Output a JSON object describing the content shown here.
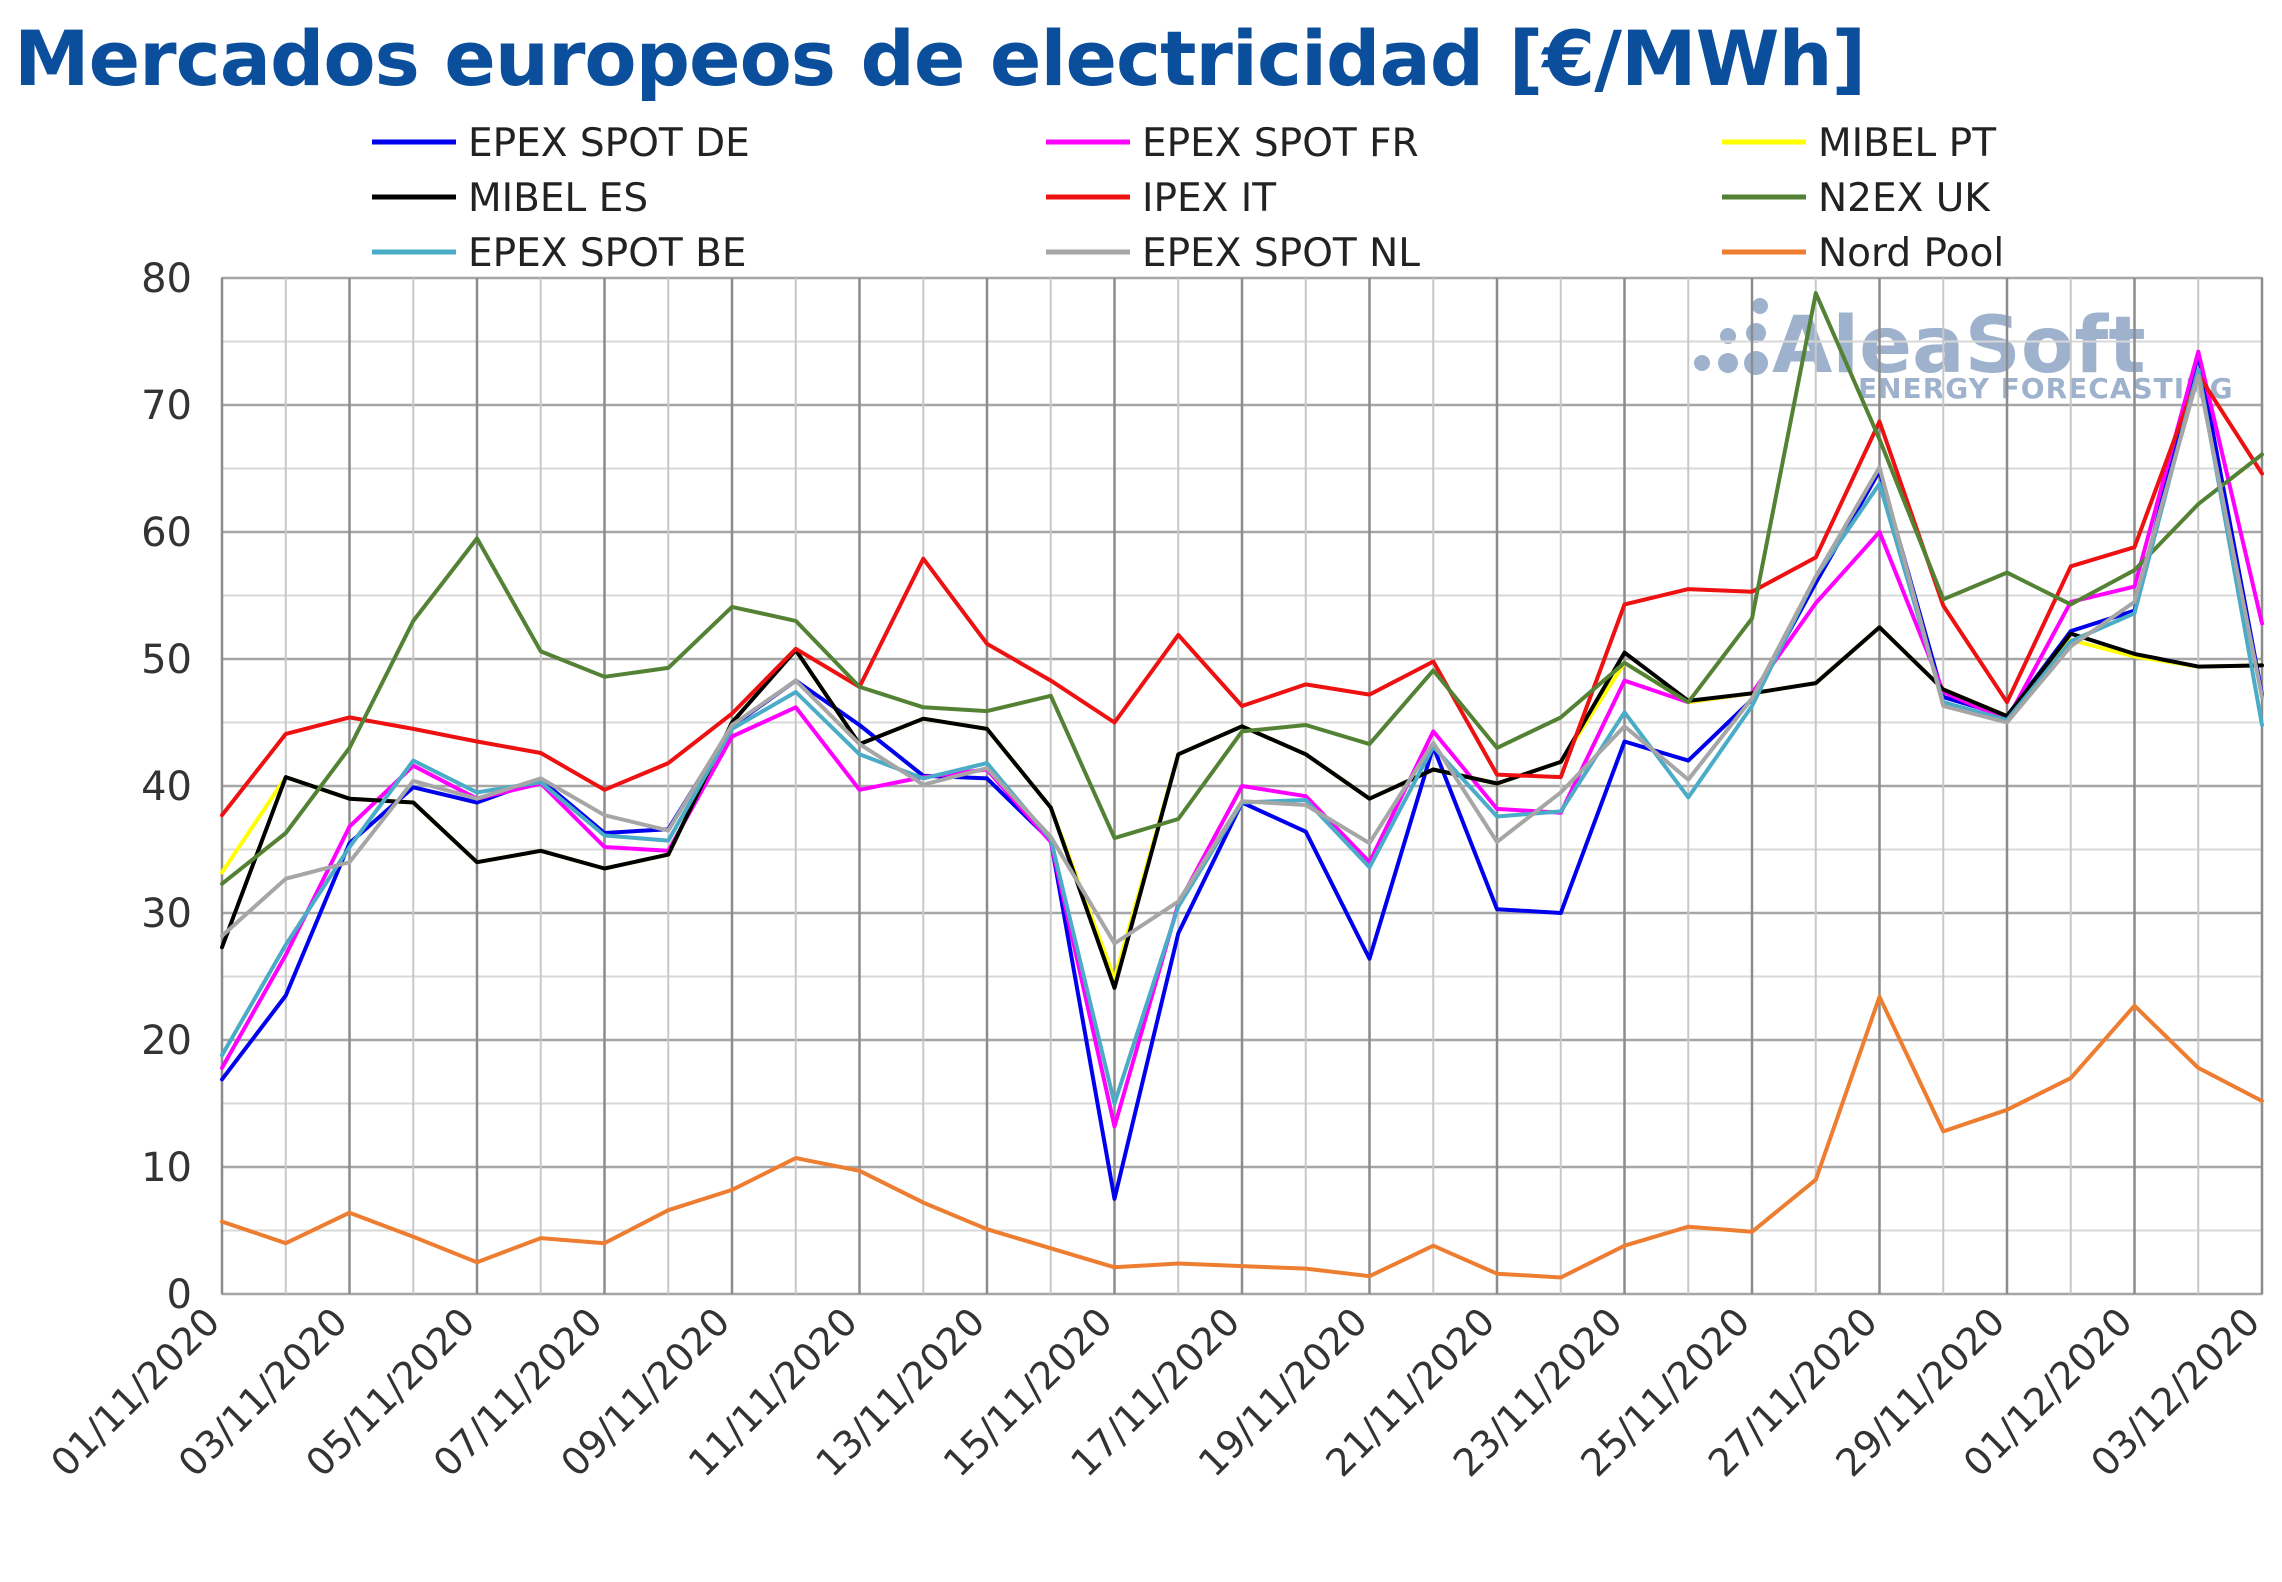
{
  "title": "Mercados europeos de electricidad [€/MWh]",
  "logo": {
    "name": "AleaSoft",
    "tagline": "ENERGY FORECASTING"
  },
  "chart_data": {
    "type": "line",
    "title": "Mercados europeos de electricidad [€/MWh]",
    "ylim": [
      0,
      80
    ],
    "ymajor": 10,
    "yminor": 5,
    "grid": true,
    "legend": "top",
    "x": [
      "01/11/2020",
      "02/11/2020",
      "03/11/2020",
      "04/11/2020",
      "05/11/2020",
      "06/11/2020",
      "07/11/2020",
      "08/11/2020",
      "09/11/2020",
      "10/11/2020",
      "11/11/2020",
      "12/11/2020",
      "13/11/2020",
      "14/11/2020",
      "15/11/2020",
      "16/11/2020",
      "17/11/2020",
      "18/11/2020",
      "19/11/2020",
      "20/11/2020",
      "21/11/2020",
      "22/11/2020",
      "23/11/2020",
      "24/11/2020",
      "25/11/2020",
      "26/11/2020",
      "27/11/2020",
      "28/11/2020",
      "29/11/2020",
      "30/11/2020",
      "01/12/2020",
      "02/12/2020",
      "03/12/2020"
    ],
    "xticklabels": [
      "01/11/2020",
      "03/11/2020",
      "05/11/2020",
      "07/11/2020",
      "09/11/2020",
      "11/11/2020",
      "13/11/2020",
      "15/11/2020",
      "17/11/2020",
      "19/11/2020",
      "21/11/2020",
      "23/11/2020",
      "25/11/2020",
      "27/11/2020",
      "29/11/2020",
      "01/12/2020",
      "03/12/2020"
    ],
    "series": [
      {
        "name": "EPEX SPOT DE",
        "color": "#0000ee",
        "values": [
          16.9,
          23.5,
          35.5,
          39.9,
          38.7,
          40.5,
          36.3,
          36.6,
          44.7,
          48.3,
          44.8,
          40.8,
          40.6,
          35.7,
          7.5,
          28.4,
          38.7,
          36.4,
          26.4,
          43.1,
          30.3,
          30.0,
          43.5,
          42.0,
          46.8,
          56.0,
          64.8,
          47.0,
          45.5,
          52.2,
          53.8,
          74.0,
          47.2
        ]
      },
      {
        "name": "EPEX SPOT FR",
        "color": "#ff00ff",
        "values": [
          17.8,
          26.7,
          36.8,
          41.6,
          39.0,
          40.2,
          35.2,
          34.9,
          43.9,
          46.2,
          39.7,
          40.7,
          41.3,
          35.6,
          13.2,
          30.7,
          40.0,
          39.2,
          34.0,
          44.3,
          38.2,
          37.9,
          48.3,
          46.6,
          47.3,
          54.4,
          60.0,
          47.4,
          45.2,
          54.5,
          55.7,
          74.2,
          52.8
        ]
      },
      {
        "name": "MIBEL PT",
        "color": "#ffff00",
        "values": [
          33.2,
          40.7,
          39.0,
          38.7,
          34.0,
          34.9,
          33.5,
          34.6,
          45.0,
          50.7,
          43.3,
          45.3,
          44.5,
          38.3,
          24.8,
          42.5,
          44.7,
          42.5,
          39.0,
          41.3,
          40.2,
          41.9,
          49.7,
          46.6,
          47.3,
          48.1,
          52.5,
          47.6,
          45.5,
          51.5,
          50.2,
          49.4,
          49.5
        ]
      },
      {
        "name": "MIBEL ES",
        "color": "#000000",
        "values": [
          27.3,
          40.7,
          39.0,
          38.7,
          34.0,
          34.9,
          33.5,
          34.6,
          45.0,
          50.7,
          43.3,
          45.3,
          44.5,
          38.3,
          24.1,
          42.5,
          44.7,
          42.5,
          39.0,
          41.3,
          40.2,
          41.9,
          50.5,
          46.7,
          47.3,
          48.1,
          52.5,
          47.6,
          45.5,
          52.0,
          50.4,
          49.4,
          49.5
        ]
      },
      {
        "name": "IPEX IT",
        "color": "#ee1111",
        "values": [
          37.7,
          44.1,
          45.4,
          44.5,
          43.5,
          42.6,
          39.7,
          41.8,
          45.7,
          50.8,
          47.8,
          57.9,
          51.2,
          48.3,
          45.0,
          51.9,
          46.3,
          48.0,
          47.2,
          49.8,
          40.9,
          40.7,
          54.3,
          55.5,
          55.3,
          58.0,
          68.7,
          54.2,
          46.6,
          57.3,
          58.8,
          72.4,
          64.6
        ]
      },
      {
        "name": "N2EX UK",
        "color": "#548235",
        "values": [
          32.3,
          36.3,
          43.0,
          53.0,
          59.5,
          50.6,
          48.6,
          49.3,
          54.1,
          53.0,
          47.8,
          46.2,
          45.9,
          47.1,
          35.9,
          37.4,
          44.3,
          44.8,
          43.3,
          49.1,
          43.0,
          45.4,
          49.7,
          46.6,
          53.2,
          78.8,
          67.3,
          54.7,
          56.8,
          54.3,
          57.0,
          62.2,
          66.1
        ]
      },
      {
        "name": "EPEX SPOT BE",
        "color": "#4aacc6",
        "values": [
          18.8,
          27.5,
          35.2,
          42.0,
          39.5,
          40.3,
          36.1,
          35.7,
          44.5,
          47.4,
          42.5,
          40.6,
          41.8,
          35.8,
          15.0,
          30.5,
          38.7,
          38.9,
          33.6,
          43.1,
          37.6,
          38.0,
          45.8,
          39.1,
          46.3,
          56.5,
          63.8,
          46.6,
          45.2,
          51.4,
          53.6,
          72.8,
          44.8
        ]
      },
      {
        "name": "EPEX SPOT NL",
        "color": "#a6a6a6",
        "values": [
          28.2,
          32.7,
          34.0,
          40.4,
          39.0,
          40.6,
          37.7,
          36.5,
          44.8,
          48.3,
          43.3,
          40.1,
          41.4,
          36.0,
          27.6,
          30.9,
          38.8,
          38.5,
          35.5,
          43.4,
          35.6,
          39.5,
          44.7,
          40.5,
          46.9,
          56.5,
          65.1,
          46.3,
          45.0,
          51.0,
          54.5,
          72.3,
          47.0
        ]
      },
      {
        "name": "Nord Pool",
        "color": "#ed7d31",
        "values": [
          5.7,
          4.0,
          6.4,
          4.5,
          2.5,
          4.4,
          4.0,
          6.6,
          8.2,
          10.7,
          9.7,
          7.2,
          5.1,
          3.6,
          2.1,
          2.4,
          2.2,
          2.0,
          1.4,
          3.8,
          1.6,
          1.3,
          3.8,
          5.3,
          4.9,
          9.0,
          23.4,
          12.8,
          14.5,
          17.0,
          22.7,
          17.8,
          15.2
        ]
      }
    ]
  }
}
